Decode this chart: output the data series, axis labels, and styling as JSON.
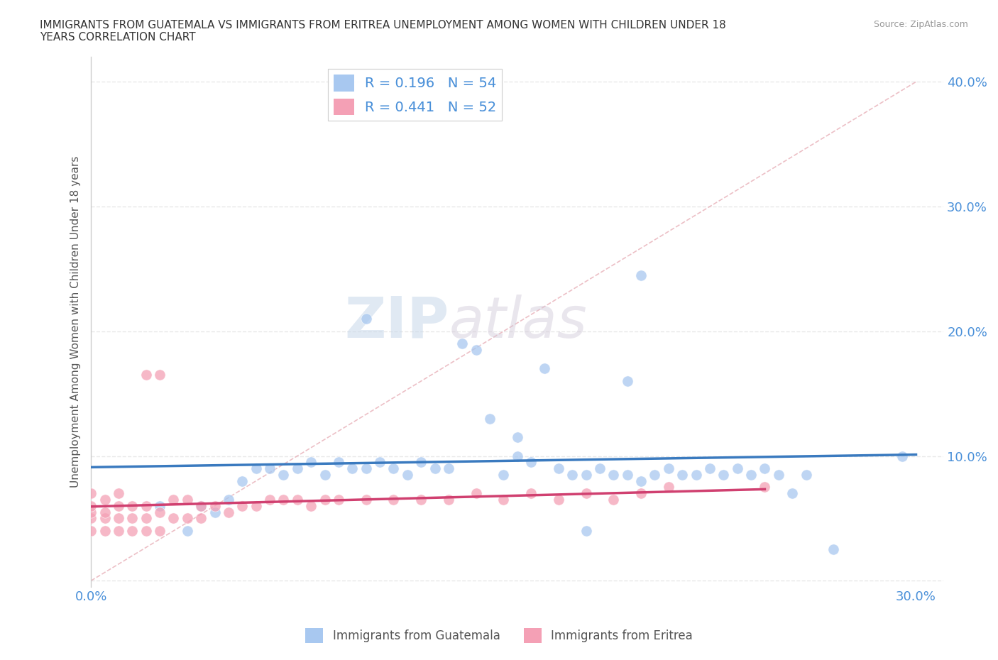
{
  "title": "IMMIGRANTS FROM GUATEMALA VS IMMIGRANTS FROM ERITREA UNEMPLOYMENT AMONG WOMEN WITH CHILDREN UNDER 18\nYEARS CORRELATION CHART",
  "source": "Source: ZipAtlas.com",
  "ylabel": "Unemployment Among Women with Children Under 18 years",
  "xlim": [
    0.0,
    0.31
  ],
  "ylim": [
    -0.005,
    0.42
  ],
  "x_ticks": [
    0.0,
    0.05,
    0.1,
    0.15,
    0.2,
    0.25,
    0.3
  ],
  "x_tick_labels": [
    "0.0%",
    "",
    "",
    "",
    "",
    "",
    "30.0%"
  ],
  "y_ticks": [
    0.0,
    0.1,
    0.2,
    0.3,
    0.4
  ],
  "y_tick_labels_right": [
    "",
    "10.0%",
    "20.0%",
    "30.0%",
    "40.0%"
  ],
  "R_guatemala": 0.196,
  "N_guatemala": 54,
  "R_eritrea": 0.441,
  "N_eritrea": 52,
  "color_guatemala": "#a8c8f0",
  "color_eritrea": "#f4a0b5",
  "color_trendline_guatemala": "#3a7abf",
  "color_trendline_eritrea": "#d04070",
  "color_diagonal": "#e8b0b8",
  "guatemala_x": [
    0.1,
    0.135,
    0.14,
    0.145,
    0.155,
    0.16,
    0.17,
    0.175,
    0.185,
    0.19,
    0.195,
    0.2,
    0.205,
    0.21,
    0.215,
    0.22,
    0.225,
    0.23,
    0.235,
    0.24,
    0.245,
    0.25,
    0.255,
    0.26,
    0.12,
    0.125,
    0.13,
    0.08,
    0.085,
    0.09,
    0.095,
    0.1,
    0.105,
    0.11,
    0.115,
    0.055,
    0.06,
    0.065,
    0.07,
    0.075,
    0.035,
    0.04,
    0.045,
    0.05,
    0.025,
    0.15,
    0.18,
    0.27,
    0.295,
    0.165,
    0.155,
    0.2,
    0.195,
    0.18
  ],
  "guatemala_y": [
    0.21,
    0.19,
    0.185,
    0.13,
    0.115,
    0.095,
    0.09,
    0.085,
    0.09,
    0.085,
    0.085,
    0.08,
    0.085,
    0.09,
    0.085,
    0.085,
    0.09,
    0.085,
    0.09,
    0.085,
    0.09,
    0.085,
    0.07,
    0.085,
    0.095,
    0.09,
    0.09,
    0.095,
    0.085,
    0.095,
    0.09,
    0.09,
    0.095,
    0.09,
    0.085,
    0.08,
    0.09,
    0.09,
    0.085,
    0.09,
    0.04,
    0.06,
    0.055,
    0.065,
    0.06,
    0.085,
    0.085,
    0.025,
    0.1,
    0.17,
    0.1,
    0.245,
    0.16,
    0.04
  ],
  "eritrea_x": [
    0.0,
    0.0,
    0.0,
    0.0,
    0.0,
    0.005,
    0.005,
    0.005,
    0.005,
    0.01,
    0.01,
    0.01,
    0.01,
    0.015,
    0.015,
    0.015,
    0.02,
    0.02,
    0.02,
    0.02,
    0.025,
    0.025,
    0.025,
    0.03,
    0.03,
    0.035,
    0.035,
    0.04,
    0.04,
    0.045,
    0.05,
    0.055,
    0.06,
    0.065,
    0.07,
    0.075,
    0.08,
    0.085,
    0.09,
    0.1,
    0.11,
    0.12,
    0.13,
    0.14,
    0.15,
    0.16,
    0.17,
    0.18,
    0.19,
    0.2,
    0.21,
    0.245
  ],
  "eritrea_y": [
    0.04,
    0.05,
    0.055,
    0.06,
    0.07,
    0.04,
    0.05,
    0.055,
    0.065,
    0.04,
    0.05,
    0.06,
    0.07,
    0.04,
    0.05,
    0.06,
    0.04,
    0.05,
    0.06,
    0.165,
    0.04,
    0.055,
    0.165,
    0.05,
    0.065,
    0.05,
    0.065,
    0.05,
    0.06,
    0.06,
    0.055,
    0.06,
    0.06,
    0.065,
    0.065,
    0.065,
    0.06,
    0.065,
    0.065,
    0.065,
    0.065,
    0.065,
    0.065,
    0.07,
    0.065,
    0.07,
    0.065,
    0.07,
    0.065,
    0.07,
    0.075,
    0.075
  ],
  "watermark_zip": "ZIP",
  "watermark_atlas": "atlas",
  "background_color": "#ffffff",
  "grid_color": "#e8e8e8"
}
